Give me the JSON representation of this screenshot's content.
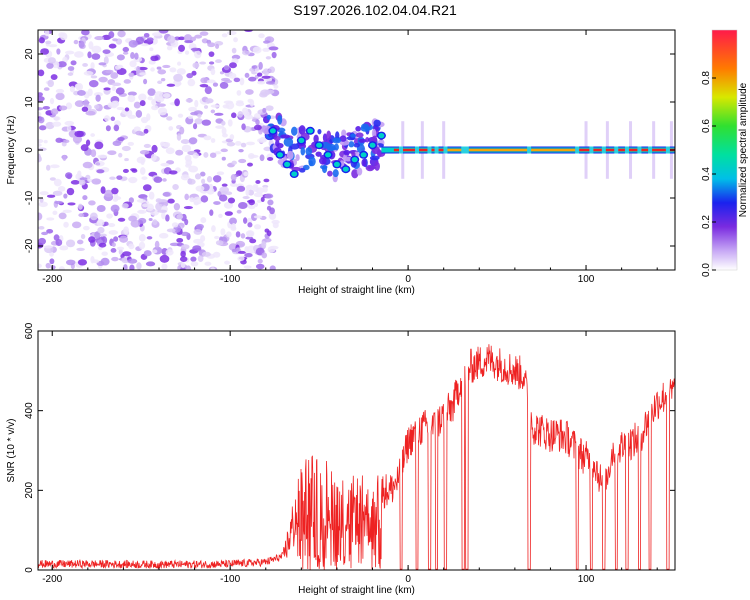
{
  "title": "S197.2026.102.04.04.R21",
  "colors": {
    "snr_line": "#ee2222",
    "axis": "#000000"
  },
  "chart_data": [
    {
      "type": "heatmap",
      "xlabel": "Height of straight line (km)",
      "ylabel": "Frequency (Hz)",
      "xlim": [
        -208,
        150
      ],
      "ylim": [
        -25,
        25
      ],
      "xticks": [
        -200,
        -100,
        0,
        100
      ],
      "yticks": [
        -20,
        -10,
        0,
        10,
        20
      ],
      "colorbar": {
        "label": "Normalized spectral amplitude",
        "range": [
          0.0,
          1.0
        ],
        "ticks": [
          0.0,
          0.2,
          0.4,
          0.6,
          0.8
        ],
        "tick_labels": [
          "0.0",
          "0.2",
          "0.4",
          "0.6",
          "0.8"
        ]
      },
      "regions": [
        {
          "name": "noise",
          "x": [
            -208,
            -80
          ],
          "freq": [
            -25,
            25
          ],
          "amplitude": 0.05
        },
        {
          "name": "transition",
          "x": [
            -80,
            -15
          ],
          "freq": [
            -6,
            10
          ],
          "amplitude": 0.25
        },
        {
          "name": "carrier",
          "x": [
            -15,
            150
          ],
          "freq": [
            0,
            0
          ],
          "amplitude": 0.9
        }
      ]
    },
    {
      "type": "line",
      "xlabel": "Height of straight line (km)",
      "ylabel": "SNR (10 * v/v)",
      "xlim": [
        -208,
        150
      ],
      "ylim": [
        0,
        600
      ],
      "xticks": [
        -200,
        -100,
        0,
        100
      ],
      "yticks": [
        0,
        200,
        400,
        600
      ],
      "series": [
        {
          "name": "SNR",
          "x": [
            -208,
            -180,
            -150,
            -120,
            -100,
            -80,
            -70,
            -62,
            -55,
            -50,
            -45,
            -40,
            -35,
            -30,
            -25,
            -20,
            -15,
            -10,
            -5,
            0,
            5,
            10,
            15,
            20,
            25,
            30,
            35,
            40,
            45,
            50,
            55,
            60,
            65,
            70,
            75,
            80,
            85,
            90,
            95,
            100,
            105,
            110,
            115,
            120,
            125,
            130,
            135,
            140,
            145,
            150
          ],
          "y": [
            15,
            15,
            14,
            14,
            15,
            20,
            35,
            150,
            200,
            170,
            180,
            160,
            140,
            150,
            150,
            120,
            200,
            200,
            230,
            320,
            350,
            360,
            360,
            390,
            410,
            480,
            510,
            520,
            530,
            520,
            510,
            500,
            490,
            360,
            350,
            340,
            340,
            330,
            300,
            280,
            270,
            200,
            300,
            310,
            320,
            330,
            380,
            420,
            440,
            450
          ],
          "dropouts": [
            -4,
            5,
            12,
            16,
            21,
            31,
            33,
            68,
            95,
            103,
            110,
            117,
            123,
            130,
            136,
            146
          ]
        }
      ]
    }
  ]
}
